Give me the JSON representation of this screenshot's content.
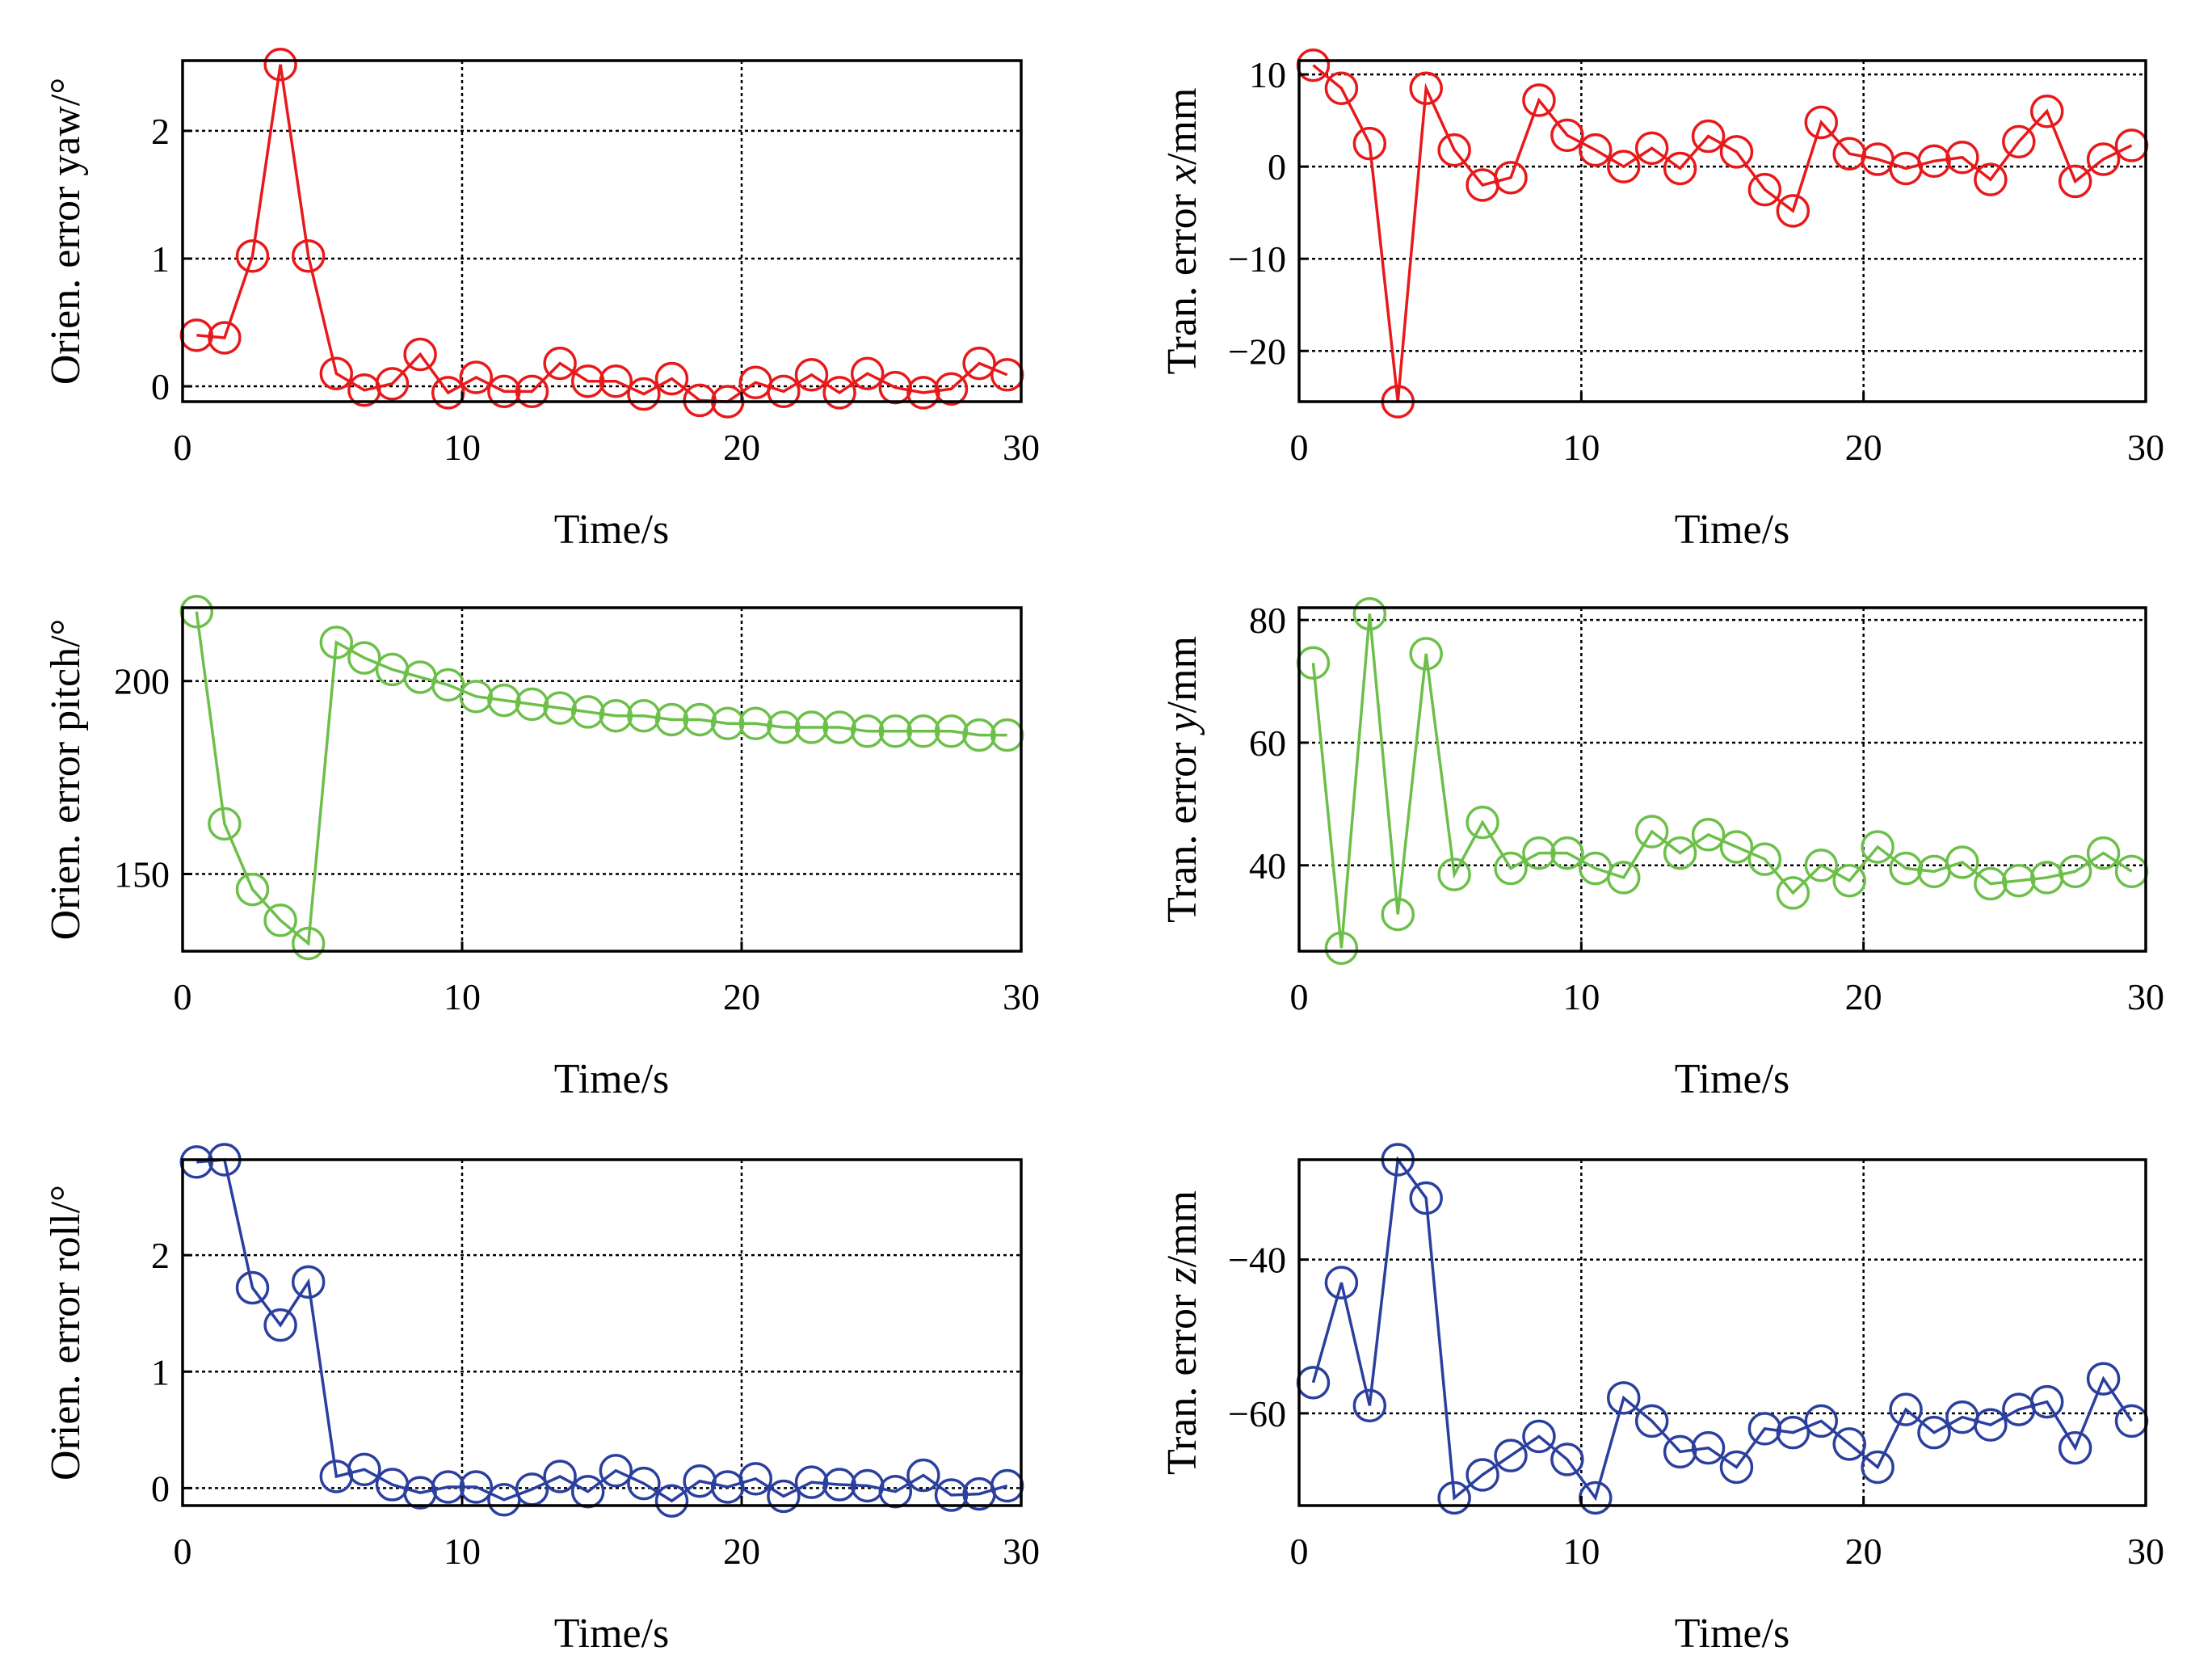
{
  "figure": {
    "description_label": "Orientation and translation errors over time"
  },
  "colors": {
    "red": "#e8191b",
    "green": "#6cc04a",
    "blue": "#2a3f9e"
  },
  "chart_data": [
    {
      "type": "line",
      "panel": "top-left",
      "color_key": "red",
      "title": "",
      "xlabel": "Time/s",
      "ylabel_parts": [
        {
          "text": "Orien. error yaw/°",
          "italic": false
        }
      ],
      "xlim": [
        0,
        30
      ],
      "ylim": [
        -0.12,
        2.55
      ],
      "xticks": [
        0,
        10,
        20,
        30
      ],
      "xtick_labels": [
        "0",
        "10",
        "20",
        "30"
      ],
      "yticks": [
        0,
        1,
        2
      ],
      "ytick_labels": [
        "0",
        "1",
        "2"
      ],
      "grid": true,
      "series": [
        {
          "name": "yaw",
          "x": [
            0.5,
            1.5,
            2.5,
            3.5,
            4.5,
            5.5,
            6.5,
            7.5,
            8.5,
            9.5,
            10.5,
            11.5,
            12.5,
            13.5,
            14.5,
            15.5,
            16.5,
            17.5,
            18.5,
            19.5,
            20.5,
            21.5,
            22.5,
            23.5,
            24.5,
            25.5,
            26.5,
            27.5,
            28.5,
            29.5
          ],
          "y": [
            0.4,
            0.38,
            1.02,
            2.52,
            1.02,
            0.1,
            -0.03,
            0.02,
            0.25,
            -0.05,
            0.07,
            -0.04,
            -0.04,
            0.18,
            0.04,
            0.04,
            -0.06,
            0.06,
            -0.11,
            -0.12,
            0.03,
            -0.04,
            0.09,
            -0.05,
            0.1,
            -0.01,
            -0.05,
            -0.02,
            0.18,
            0.09
          ]
        }
      ]
    },
    {
      "type": "line",
      "panel": "top-right",
      "color_key": "red",
      "title": "",
      "xlabel": "Time/s",
      "ylabel_parts": [
        {
          "text": "Tran. error ",
          "italic": false
        },
        {
          "text": "x",
          "italic": true
        },
        {
          "text": "/mm",
          "italic": false
        }
      ],
      "xlim": [
        0,
        30
      ],
      "ylim": [
        -25.5,
        11.5
      ],
      "xticks": [
        0,
        10,
        20,
        30
      ],
      "xtick_labels": [
        "0",
        "10",
        "20",
        "30"
      ],
      "yticks": [
        10,
        0,
        -10,
        -20
      ],
      "ytick_labels": [
        "10",
        "0",
        "−10",
        "−20"
      ],
      "grid": true,
      "series": [
        {
          "name": "x",
          "x": [
            0.5,
            1.5,
            2.5,
            3.5,
            4.5,
            5.5,
            6.5,
            7.5,
            8.5,
            9.5,
            10.5,
            11.5,
            12.5,
            13.5,
            14.5,
            15.5,
            16.5,
            17.5,
            18.5,
            19.5,
            20.5,
            21.5,
            22.5,
            23.5,
            24.5,
            25.5,
            26.5,
            27.5,
            28.5,
            29.5
          ],
          "y": [
            11,
            8.5,
            2.5,
            -25.5,
            8.5,
            1.8,
            -2.0,
            -1.2,
            7.2,
            3.4,
            1.8,
            0.0,
            2.0,
            -0.2,
            3.3,
            1.6,
            -2.5,
            -4.8,
            4.8,
            1.4,
            0.8,
            -0.2,
            0.6,
            1.0,
            -1.4,
            2.7,
            6.0,
            -1.6,
            0.8,
            2.3
          ]
        }
      ]
    },
    {
      "type": "line",
      "panel": "middle-left",
      "color_key": "green",
      "title": "",
      "xlabel": "Time/s",
      "ylabel_parts": [
        {
          "text": "Orien. error pitch/°",
          "italic": false
        }
      ],
      "xlim": [
        0,
        30
      ],
      "ylim": [
        130,
        219
      ],
      "xticks": [
        0,
        10,
        20,
        30
      ],
      "xtick_labels": [
        "0",
        "10",
        "20",
        "30"
      ],
      "yticks": [
        150,
        200
      ],
      "ytick_labels": [
        "150",
        "200"
      ],
      "grid": true,
      "series": [
        {
          "name": "pitch",
          "x": [
            0.5,
            1.5,
            2.5,
            3.5,
            4.5,
            5.5,
            6.5,
            7.5,
            8.5,
            9.5,
            10.5,
            11.5,
            12.5,
            13.5,
            14.5,
            15.5,
            16.5,
            17.5,
            18.5,
            19.5,
            20.5,
            21.5,
            22.5,
            23.5,
            24.5,
            25.5,
            26.5,
            27.5,
            28.5,
            29.5
          ],
          "y": [
            218,
            163,
            146,
            138,
            132,
            210,
            206,
            203,
            201,
            199,
            196,
            195,
            194,
            193,
            192,
            191,
            191,
            190,
            190,
            189,
            189,
            188,
            188,
            188,
            187,
            187,
            187,
            187,
            186,
            186
          ]
        }
      ]
    },
    {
      "type": "line",
      "panel": "middle-right",
      "color_key": "green",
      "title": "",
      "xlabel": "Time/s",
      "ylabel_parts": [
        {
          "text": "Tran. error ",
          "italic": false
        },
        {
          "text": "y",
          "italic": true
        },
        {
          "text": "/mm",
          "italic": false
        }
      ],
      "xlim": [
        0,
        30
      ],
      "ylim": [
        26,
        82
      ],
      "xticks": [
        0,
        10,
        20,
        30
      ],
      "xtick_labels": [
        "0",
        "10",
        "20",
        "30"
      ],
      "yticks": [
        40,
        60,
        80
      ],
      "ytick_labels": [
        "40",
        "60",
        "80"
      ],
      "grid": true,
      "series": [
        {
          "name": "y",
          "x": [
            0.5,
            1.5,
            2.5,
            3.5,
            4.5,
            5.5,
            6.5,
            7.5,
            8.5,
            9.5,
            10.5,
            11.5,
            12.5,
            13.5,
            14.5,
            15.5,
            16.5,
            17.5,
            18.5,
            19.5,
            20.5,
            21.5,
            22.5,
            23.5,
            24.5,
            25.5,
            26.5,
            27.5,
            28.5,
            29.5
          ],
          "y": [
            73,
            26.5,
            81,
            32,
            74.5,
            38.5,
            47,
            39.5,
            42,
            42,
            39.5,
            38,
            45.5,
            42,
            45,
            43,
            41,
            35.5,
            40,
            37.5,
            43,
            39.5,
            39,
            40.5,
            37,
            37.5,
            38,
            39,
            42,
            39
          ]
        }
      ]
    },
    {
      "type": "line",
      "panel": "bottom-left",
      "color_key": "blue",
      "title": "",
      "xlabel": "Time/s",
      "ylabel_parts": [
        {
          "text": "Orien. error roll/°",
          "italic": false
        }
      ],
      "xlim": [
        0,
        30
      ],
      "ylim": [
        -0.15,
        2.82
      ],
      "xticks": [
        0,
        10,
        20,
        30
      ],
      "xtick_labels": [
        "0",
        "10",
        "20",
        "30"
      ],
      "yticks": [
        0,
        1,
        2
      ],
      "ytick_labels": [
        "0",
        "1",
        "2"
      ],
      "grid": true,
      "series": [
        {
          "name": "roll",
          "x": [
            0.5,
            1.5,
            2.5,
            3.5,
            4.5,
            5.5,
            6.5,
            7.5,
            8.5,
            9.5,
            10.5,
            11.5,
            12.5,
            13.5,
            14.5,
            15.5,
            16.5,
            17.5,
            18.5,
            19.5,
            20.5,
            21.5,
            22.5,
            23.5,
            24.5,
            25.5,
            26.5,
            27.5,
            28.5,
            29.5
          ],
          "y": [
            2.8,
            2.82,
            1.72,
            1.4,
            1.77,
            0.1,
            0.16,
            0.03,
            -0.04,
            0.01,
            0.01,
            -0.1,
            -0.01,
            0.1,
            -0.03,
            0.15,
            0.04,
            -0.11,
            0.06,
            0.01,
            0.08,
            -0.07,
            0.05,
            0.03,
            0.02,
            -0.03,
            0.11,
            -0.06,
            -0.05,
            0.02
          ]
        }
      ]
    },
    {
      "type": "line",
      "panel": "bottom-right",
      "color_key": "blue",
      "title": "",
      "xlabel": "Time/s",
      "ylabel_parts": [
        {
          "text": "Tran. error ",
          "italic": false
        },
        {
          "text": "z",
          "italic": true
        },
        {
          "text": "/mm",
          "italic": false
        }
      ],
      "xlim": [
        0,
        30
      ],
      "ylim": [
        -72,
        -27
      ],
      "xticks": [
        0,
        10,
        20,
        30
      ],
      "xtick_labels": [
        "0",
        "10",
        "20",
        "30"
      ],
      "yticks": [
        -40,
        -60
      ],
      "ytick_labels": [
        "−40",
        "−60"
      ],
      "grid": true,
      "series": [
        {
          "name": "z",
          "x": [
            0.5,
            1.5,
            2.5,
            3.5,
            4.5,
            5.5,
            6.5,
            7.5,
            8.5,
            9.5,
            10.5,
            11.5,
            12.5,
            13.5,
            14.5,
            15.5,
            16.5,
            17.5,
            18.5,
            19.5,
            20.5,
            21.5,
            22.5,
            23.5,
            24.5,
            25.5,
            26.5,
            27.5,
            28.5,
            29.5
          ],
          "y": [
            -56,
            -43,
            -59,
            -27,
            -32,
            -71,
            -68,
            -65.5,
            -63,
            -66,
            -71,
            -58,
            -61,
            -65,
            -64.5,
            -67,
            -62,
            -62.5,
            -61,
            -64,
            -67,
            -59.5,
            -62.5,
            -60.5,
            -61.5,
            -59.5,
            -58.5,
            -64.5,
            -55.5,
            -61
          ]
        }
      ]
    }
  ]
}
